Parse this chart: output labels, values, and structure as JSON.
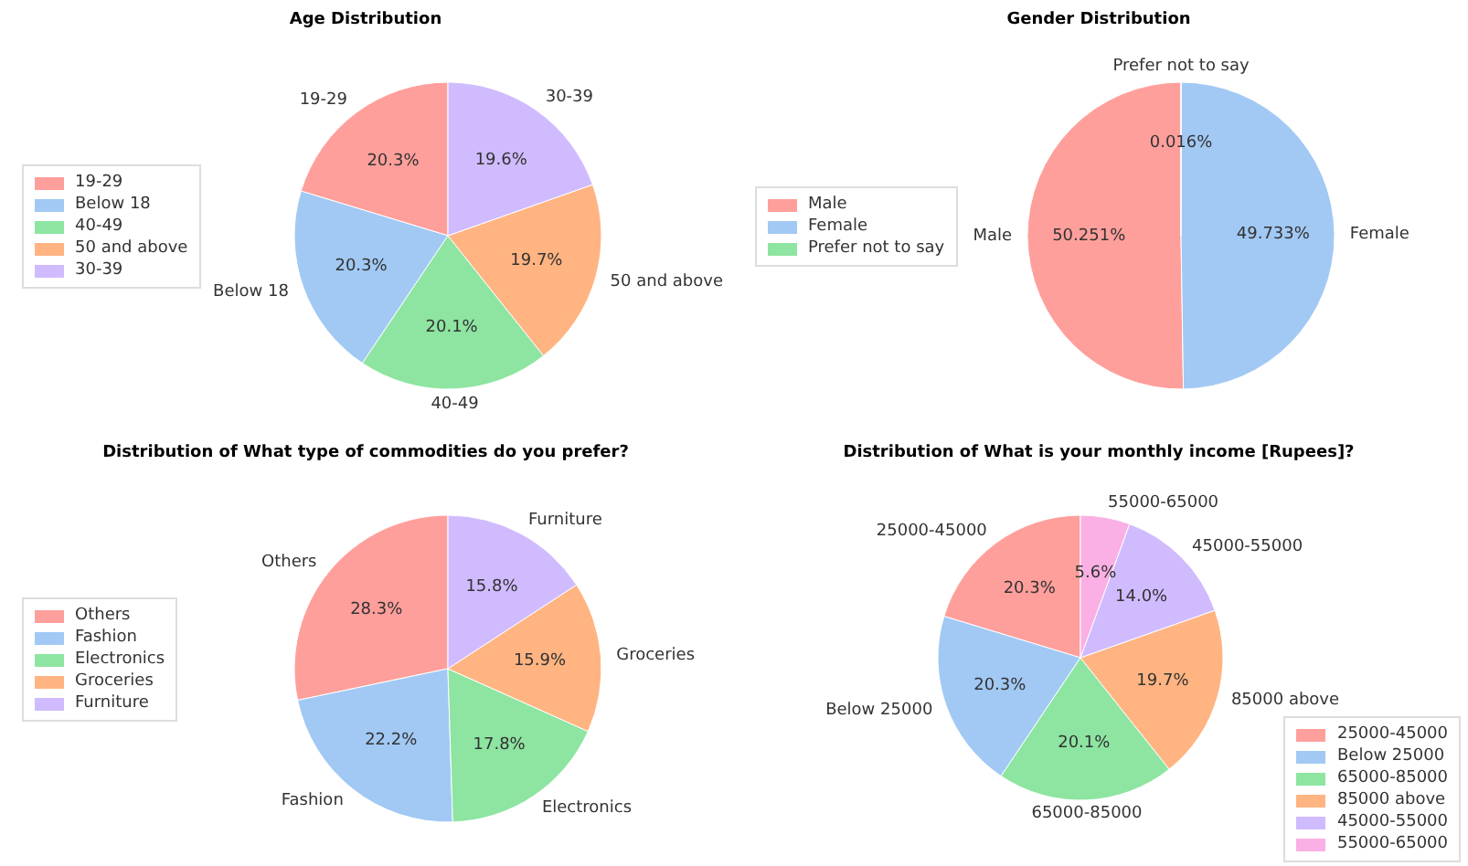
{
  "chart_data": [
    {
      "type": "pie",
      "title": "Age Distribution",
      "categories": [
        "19-29",
        "Below 18",
        "40-49",
        "50 and above",
        "30-39"
      ],
      "values": [
        20.3,
        20.3,
        20.1,
        19.7,
        19.6
      ],
      "value_labels": [
        "20.3%",
        "20.3%",
        "20.1%",
        "19.7%",
        "19.6%"
      ],
      "colors": [
        "#ff9f9b",
        "#a1c9f4",
        "#8de5a1",
        "#ffb482",
        "#d0bbff"
      ],
      "legend": "left"
    },
    {
      "type": "pie",
      "title": "Gender Distribution",
      "categories": [
        "Male",
        "Female",
        "Prefer not to say"
      ],
      "values": [
        50.251,
        49.733,
        0.016
      ],
      "value_labels": [
        "50.251%",
        "49.733%",
        "0.016%"
      ],
      "colors": [
        "#ff9f9b",
        "#a1c9f4",
        "#8de5a1"
      ],
      "legend": "left"
    },
    {
      "type": "pie",
      "title": "Distribution of What type of commodities do you prefer?",
      "categories": [
        "Others",
        "Fashion",
        "Electronics",
        "Groceries",
        "Furniture"
      ],
      "values": [
        28.3,
        22.2,
        17.8,
        15.9,
        15.8
      ],
      "value_labels": [
        "28.3%",
        "22.2%",
        "17.8%",
        "15.9%",
        "15.8%"
      ],
      "colors": [
        "#ff9f9b",
        "#a1c9f4",
        "#8de5a1",
        "#ffb482",
        "#d0bbff"
      ],
      "legend": "left"
    },
    {
      "type": "pie",
      "title": "Distribution of What is your monthly income [Rupees]?",
      "categories": [
        "25000-45000",
        "Below 25000",
        "65000-85000",
        "85000 above",
        "45000-55000",
        "55000-65000"
      ],
      "values": [
        20.3,
        20.3,
        20.1,
        19.7,
        14.0,
        5.6
      ],
      "value_labels": [
        "20.3%",
        "20.3%",
        "20.1%",
        "19.7%",
        "14.0%",
        "5.6%"
      ],
      "colors": [
        "#ff9f9b",
        "#a1c9f4",
        "#8de5a1",
        "#ffb482",
        "#d0bbff",
        "#fab0e4"
      ],
      "legend": "bottom right"
    }
  ]
}
